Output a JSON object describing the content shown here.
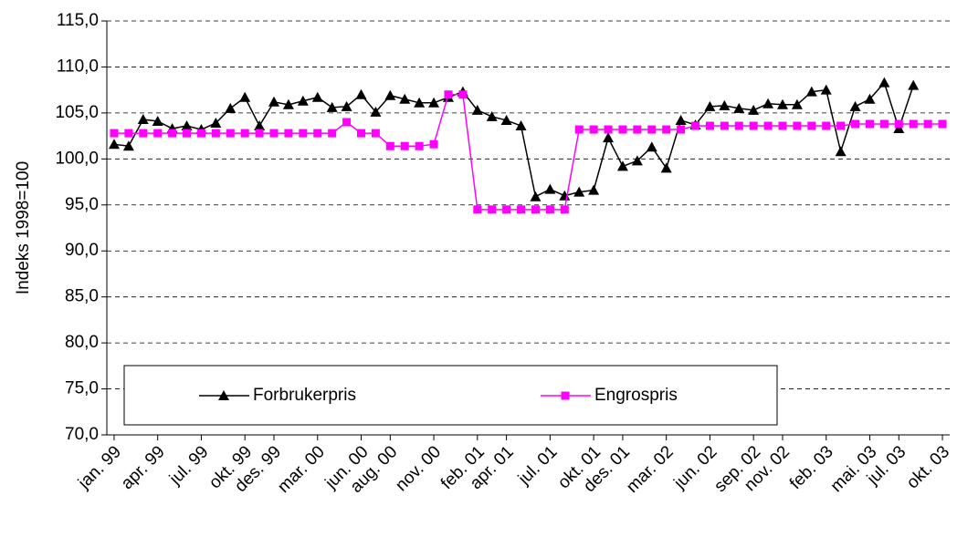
{
  "chart_data": {
    "type": "line",
    "ylabel": "Indeks 1998=100",
    "categories": [
      "jan. 99",
      null,
      null,
      "apr. 99",
      null,
      null,
      "jul. 99",
      null,
      null,
      "okt. 99",
      null,
      "des. 99",
      null,
      null,
      "mar. 00",
      null,
      null,
      "jun. 00",
      null,
      "aug. 00",
      null,
      null,
      "nov. 00",
      null,
      null,
      "feb. 01",
      null,
      "apr. 01",
      null,
      null,
      "jul. 01",
      null,
      null,
      "okt. 01",
      null,
      "des. 01",
      null,
      null,
      "mar. 02",
      null,
      null,
      "jun. 02",
      null,
      null,
      "sep. 02",
      null,
      "nov. 02",
      null,
      null,
      "feb. 03",
      null,
      null,
      "mai. 03",
      null,
      "jul. 03",
      null,
      null,
      "okt. 03"
    ],
    "series": [
      {
        "name": "Forbrukerpris",
        "color": "#000000",
        "marker": "triangle",
        "values": [
          101.6,
          101.4,
          104.3,
          104.1,
          103.3,
          103.6,
          103.2,
          103.9,
          105.5,
          106.7,
          103.6,
          106.2,
          105.9,
          106.3,
          106.7,
          105.6,
          105.7,
          107.0,
          105.1,
          106.9,
          106.5,
          106.1,
          106.1,
          106.7,
          107.3,
          105.3,
          104.6,
          104.2,
          103.6,
          95.9,
          96.7,
          96.0,
          96.4,
          96.6,
          102.3,
          99.2,
          99.8,
          101.3,
          99.0,
          104.2,
          103.7,
          105.7,
          105.8,
          105.5,
          105.3,
          106.0,
          105.9,
          105.9,
          107.3,
          107.5,
          100.8,
          105.7,
          106.5,
          108.3,
          103.3,
          108.0,
          null,
          null
        ]
      },
      {
        "name": "Engrospris",
        "color": "#ff00ff",
        "marker": "square",
        "values": [
          102.8,
          102.8,
          102.8,
          102.8,
          102.8,
          102.8,
          102.8,
          102.8,
          102.8,
          102.8,
          102.8,
          102.8,
          102.8,
          102.8,
          102.8,
          102.8,
          104.0,
          102.8,
          102.8,
          101.4,
          101.4,
          101.4,
          101.6,
          107.0,
          107.0,
          94.5,
          94.5,
          94.5,
          94.5,
          94.5,
          94.5,
          94.5,
          103.2,
          103.2,
          103.2,
          103.2,
          103.2,
          103.2,
          103.2,
          103.2,
          103.6,
          103.6,
          103.6,
          103.6,
          103.6,
          103.6,
          103.6,
          103.6,
          103.6,
          103.6,
          103.6,
          103.8,
          103.8,
          103.8,
          103.8,
          103.8,
          103.8,
          103.8
        ]
      }
    ],
    "ylim": [
      70,
      115
    ],
    "yticks": [
      {
        "value": 70,
        "label": "70,0"
      },
      {
        "value": 75,
        "label": "75,0"
      },
      {
        "value": 80,
        "label": "80,0"
      },
      {
        "value": 85,
        "label": "85,0"
      },
      {
        "value": 90,
        "label": "90,0"
      },
      {
        "value": 95,
        "label": "95,0"
      },
      {
        "value": 100,
        "label": "100,0"
      },
      {
        "value": 105,
        "label": "105,0"
      },
      {
        "value": 110,
        "label": "110,0"
      },
      {
        "value": 115,
        "label": "115,0"
      }
    ],
    "grid": true,
    "legend": "bottom"
  }
}
